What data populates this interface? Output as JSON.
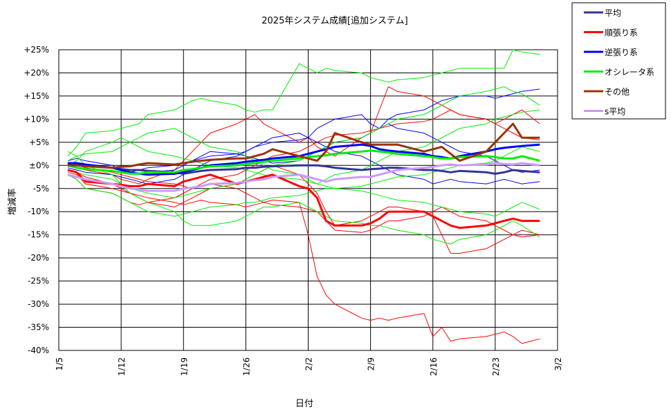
{
  "chart_data": {
    "type": "line",
    "title": "2025年システム成績[追加システム]",
    "xlabel": "日付",
    "ylabel": "増減率",
    "ylim": [
      -40,
      25
    ],
    "y_ticks": [
      "+25%",
      "+20%",
      "+15%",
      "+10%",
      "+5%",
      "±0%",
      "-5%",
      "-10%",
      "-15%",
      "-20%",
      "-25%",
      "-30%",
      "-35%",
      "-40%"
    ],
    "x_ticks": [
      "1/5",
      "1/12",
      "1/19",
      "1/26",
      "2/2",
      "2/9",
      "2/16",
      "2/23",
      "3/2"
    ],
    "x_range_days": [
      0,
      56
    ],
    "grid": true,
    "legend_position": "right-top",
    "x": [
      1,
      2,
      3,
      6,
      7,
      8,
      9,
      10,
      13,
      14,
      15,
      16,
      17,
      20,
      21,
      22,
      23,
      24,
      27,
      28,
      29,
      30,
      31,
      34,
      35,
      36,
      37,
      38,
      41,
      42,
      43,
      44,
      45,
      48,
      49,
      50,
      51,
      52,
      54
    ],
    "series": [
      {
        "name": "平均",
        "color": "#333399",
        "width": 3,
        "legend": true,
        "values": [
          0.5,
          0.2,
          0,
          -0.5,
          -0.8,
          -1,
          -1,
          -1.2,
          -1.5,
          -1.8,
          -1.5,
          -1.2,
          -1,
          -0.8,
          -0.5,
          -0.5,
          -0.3,
          -0.2,
          0,
          0,
          0,
          -0.2,
          -0.5,
          -1,
          -0.8,
          -0.7,
          -0.5,
          -0.5,
          -1,
          -1,
          -1.2,
          -1.5,
          -1.2,
          -1.5,
          -1.8,
          -1.5,
          -1,
          -1.2,
          -1.5
        ]
      },
      {
        "name": "順張り系",
        "color": "#ff0000",
        "width": 3,
        "legend": true,
        "values": [
          -1,
          -1.5,
          -3.5,
          -4,
          -4.2,
          -4.5,
          -4.5,
          -4,
          -4.5,
          -3.5,
          -3,
          -2.5,
          -2,
          -4,
          -3.5,
          -3,
          -2.5,
          -2,
          -4.5,
          -5,
          -7,
          -12,
          -13,
          -13,
          -12.5,
          -11.5,
          -10,
          -10,
          -10,
          -11,
          -12,
          -13,
          -13.5,
          -13,
          -12.5,
          -12,
          -11.5,
          -12,
          -12
        ]
      },
      {
        "name": "逆張り系",
        "color": "#0000ff",
        "width": 3,
        "legend": true,
        "values": [
          0.5,
          0.5,
          0.2,
          -0.5,
          -1,
          -1.5,
          -1.8,
          -2,
          -1.8,
          -1.5,
          -1,
          -0.5,
          0,
          0.5,
          0.8,
          1,
          1.2,
          1.5,
          2,
          2.5,
          3,
          3.5,
          4,
          4.5,
          4.2,
          3.5,
          3.2,
          3,
          2.5,
          2,
          1.8,
          1.5,
          2,
          3,
          3.5,
          3.8,
          4,
          4.2,
          4.5
        ]
      },
      {
        "name": "オシレータ系",
        "color": "#00ee00",
        "width": 3,
        "legend": true,
        "values": [
          0,
          -0.5,
          -0.8,
          -1.2,
          -1.5,
          -1.8,
          -1.8,
          -1.5,
          -1.5,
          -1,
          -0.8,
          -0.5,
          -0.2,
          0,
          0.3,
          0.5,
          0.8,
          1,
          1.5,
          1.8,
          2,
          2.2,
          2.5,
          3,
          3.2,
          3,
          2.8,
          2.5,
          2,
          1.8,
          1.5,
          1.5,
          1.8,
          2,
          1.8,
          1.5,
          1.5,
          2,
          1
        ]
      },
      {
        "name": "その他",
        "color": "#993300",
        "width": 3,
        "legend": true,
        "values": [
          0,
          0,
          -0.2,
          -0.5,
          -0.3,
          -0.2,
          0.2,
          0.5,
          0.2,
          0.5,
          0.8,
          1,
          1.2,
          1.5,
          1.5,
          2,
          2.5,
          3.5,
          2,
          1.5,
          1,
          3,
          7,
          5,
          4.5,
          4.5,
          4.5,
          4.5,
          3,
          3.5,
          4,
          2.5,
          1,
          3,
          5,
          7,
          9,
          6,
          6
        ]
      },
      {
        "name": "s平均",
        "color": "#cc99ff",
        "width": 3,
        "legend": true,
        "values": [
          -2,
          -2.5,
          -3,
          -4,
          -4.5,
          -5,
          -5.2,
          -5.5,
          -5.5,
          -5,
          -4.8,
          -4.5,
          -4,
          -3.8,
          -3.5,
          -3.2,
          -3,
          -2.5,
          -2,
          -2.5,
          -3,
          -3.5,
          -3,
          -2.5,
          -2.5,
          -2,
          -1.5,
          -1,
          -0.5,
          -0.3,
          0,
          0.2,
          0,
          0.2,
          0.5,
          0.3,
          0.2,
          0.5,
          0
        ]
      },
      {
        "name": "",
        "color": "#ff0000",
        "width": 1,
        "legend": false,
        "values": [
          -1.5,
          -2,
          -4,
          -5,
          -5.5,
          -6,
          -6.5,
          -7,
          -8,
          -8.5,
          -8,
          -7.5,
          -8,
          -8.5,
          -9,
          -8.5,
          -8,
          -7.5,
          -8,
          -15,
          -24,
          -28,
          -30,
          -33,
          -33.5,
          -33,
          -33.5,
          -33,
          -32,
          -37,
          -35,
          -38,
          -37.5,
          -37,
          -36.5,
          -36,
          -37,
          -38.5,
          -37.5
        ]
      },
      {
        "name": "",
        "color": "#ff0000",
        "width": 1,
        "legend": false,
        "values": [
          0,
          -0.5,
          -1,
          -2,
          -3,
          -3.5,
          -4,
          -3,
          -1,
          1,
          3,
          5,
          7,
          9,
          10,
          11,
          9,
          8,
          5,
          6,
          4,
          3,
          2,
          6,
          7,
          12,
          17,
          16,
          15,
          14,
          13,
          12,
          11,
          10,
          9,
          10,
          11,
          12,
          9
        ]
      },
      {
        "name": "",
        "color": "#ff0000",
        "width": 1,
        "legend": false,
        "values": [
          -1,
          -1.5,
          -2.5,
          -4,
          -5,
          -6,
          -7,
          -8,
          -9,
          -8,
          -7,
          -6,
          -5,
          -4,
          -3,
          -2,
          -1,
          0,
          -2,
          -4,
          -6,
          -10,
          -13,
          -12,
          -11,
          -10,
          -9,
          -9,
          -10,
          -11,
          -15,
          -19,
          -19,
          -18,
          -17,
          -16,
          -15,
          -14,
          -15
        ]
      },
      {
        "name": "",
        "color": "#ff0000",
        "width": 1,
        "legend": false,
        "values": [
          -2,
          -3,
          -5,
          -6,
          -7,
          -8,
          -8.5,
          -8,
          -7,
          -6,
          -5,
          -4.5,
          -4,
          -5,
          -6,
          -7,
          -8,
          -8.5,
          -9,
          -9.5,
          -10,
          -12,
          -14,
          -14.5,
          -14,
          -13,
          -12,
          -12,
          -11,
          -10,
          -9,
          -10,
          -11,
          -12,
          -13,
          -14,
          -15,
          -15.5,
          -15
        ]
      },
      {
        "name": "",
        "color": "#ff0000",
        "width": 1,
        "legend": false,
        "values": [
          0.5,
          0,
          -0.5,
          -1.5,
          -2,
          -2.5,
          -3,
          -3.5,
          -4,
          -4.5,
          -5,
          -4,
          -3,
          -2,
          -1,
          0,
          1,
          2,
          3,
          4,
          5,
          6,
          6.5,
          7,
          7.5,
          8,
          8.5,
          9,
          9.5,
          10,
          11,
          12,
          11,
          10,
          9,
          8,
          7,
          6,
          5.5
        ]
      },
      {
        "name": "",
        "color": "#0000ff",
        "width": 1,
        "legend": false,
        "values": [
          1,
          1.5,
          1,
          0,
          -1,
          -1.5,
          -2,
          -1.5,
          -1,
          0,
          1,
          2,
          3,
          2.5,
          3,
          4,
          5,
          6,
          7,
          6,
          8,
          9,
          10,
          11,
          9,
          8,
          10,
          11,
          12,
          13,
          14,
          14.5,
          15,
          15,
          14.5,
          15,
          15.5,
          16,
          16.5
        ]
      },
      {
        "name": "",
        "color": "#0000ff",
        "width": 1,
        "legend": false,
        "values": [
          -0.5,
          -1,
          -1.5,
          -2,
          -2.5,
          -3,
          -3.5,
          -4,
          -3,
          -2,
          -1,
          0,
          1,
          2,
          3,
          4,
          4.5,
          5,
          5.5,
          6,
          5,
          4,
          3,
          2,
          1,
          0,
          -1,
          -2,
          -3,
          -4,
          -3.5,
          -3,
          -3.5,
          -4,
          -3.5,
          -3,
          -3.5,
          -4,
          -3.5
        ]
      },
      {
        "name": "",
        "color": "#0000ff",
        "width": 1,
        "legend": false,
        "values": [
          0,
          0.5,
          0.2,
          -0.5,
          -1,
          -1.5,
          -1,
          -0.5,
          0,
          0.5,
          1,
          1.5,
          2,
          2.5,
          2,
          1.5,
          1,
          0.5,
          1,
          2,
          3,
          4,
          5,
          6,
          7,
          8,
          9,
          8,
          7,
          6,
          5,
          4,
          3,
          2,
          1,
          0,
          -1,
          -1.5,
          -1
        ]
      },
      {
        "name": "",
        "color": "#00ee00",
        "width": 1,
        "legend": false,
        "values": [
          2,
          4,
          7,
          7.5,
          8,
          8.5,
          9,
          11,
          12,
          13,
          14,
          14.5,
          14,
          13,
          12,
          11.5,
          12,
          12,
          22,
          21,
          20,
          21,
          20.5,
          20,
          19,
          18.5,
          18,
          18.5,
          19,
          19.5,
          20,
          20.5,
          21,
          21,
          21,
          21,
          25,
          24.5,
          24
        ]
      },
      {
        "name": "",
        "color": "#00ee00",
        "width": 1,
        "legend": false,
        "values": [
          3,
          2,
          0,
          -2,
          -4,
          -6,
          -7,
          -8,
          -10,
          -12,
          -13,
          -13,
          -13,
          -12,
          -11,
          -10,
          -9,
          -9,
          -8,
          -9,
          -10,
          -11,
          -12,
          -12.5,
          -13,
          -13,
          -13.5,
          -14,
          -15,
          -16,
          -16.5,
          -17,
          -16,
          -15,
          -14,
          -13,
          -12,
          -13,
          -15.5
        ]
      },
      {
        "name": "",
        "color": "#00ee00",
        "width": 1,
        "legend": false,
        "values": [
          -1,
          -1.5,
          -2,
          -3,
          -4,
          -5,
          -5.5,
          -6,
          -7,
          -6.5,
          -6,
          -5.5,
          -5,
          -4,
          -3,
          -2,
          -1,
          0,
          1,
          2,
          3,
          4,
          5,
          6,
          7,
          8,
          9,
          10,
          11,
          12,
          13,
          14,
          15,
          16,
          16.5,
          17,
          16,
          15.5,
          13
        ]
      },
      {
        "name": "",
        "color": "#00ee00",
        "width": 1,
        "legend": false,
        "values": [
          0,
          1,
          3,
          5,
          6,
          5,
          4,
          3,
          2,
          1.5,
          1,
          0.5,
          0,
          -0.5,
          -1,
          -1.5,
          -2,
          -2.5,
          -3,
          -3.5,
          -4,
          -4.5,
          -5,
          -5.5,
          -6,
          -6.5,
          -7,
          -7.5,
          -8,
          -8.5,
          -9,
          -9.5,
          -10,
          -10.5,
          -11,
          -10,
          -9,
          -8,
          -9.5
        ]
      },
      {
        "name": "",
        "color": "#00ee00",
        "width": 1,
        "legend": false,
        "values": [
          1,
          2,
          2.5,
          3,
          4,
          5,
          6,
          7,
          8,
          7,
          6,
          5,
          4,
          3,
          2,
          1,
          0,
          -1,
          -2,
          -3,
          -4,
          -3,
          -2,
          -1,
          0,
          1,
          2,
          3,
          4,
          5,
          6,
          7,
          8,
          9,
          10,
          10.5,
          11,
          11.5,
          12
        ]
      },
      {
        "name": "",
        "color": "#00ee00",
        "width": 1,
        "legend": false,
        "values": [
          -2,
          -3,
          -5,
          -6,
          -7,
          -8,
          -9,
          -10,
          -11,
          -10.5,
          -10,
          -9.5,
          -9,
          -8.5,
          -8,
          -8,
          -7.5,
          -7,
          -6.5,
          -6,
          -5.5,
          -5,
          -5,
          -4.5,
          -4,
          -3.5,
          -3,
          -2.5,
          -2,
          -1.5,
          -1,
          -0.5,
          0,
          0.5,
          1,
          2,
          3,
          4,
          3
        ]
      }
    ]
  }
}
